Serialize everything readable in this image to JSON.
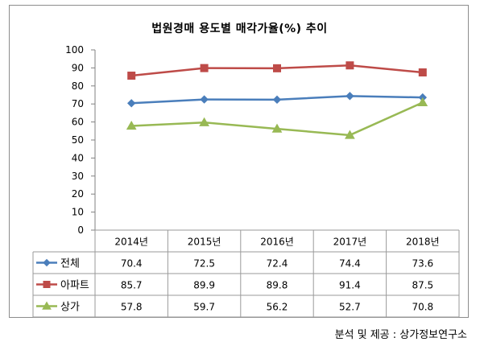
{
  "source_note": "분석 및 제공 : 상가정보연구소",
  "colors": {
    "grid": "#9a9a9a",
    "axis": "#808080"
  },
  "chart_data": {
    "type": "line",
    "title": "법원경매 용도별 매각가율(%) 추이",
    "categories": [
      "2014년",
      "2015년",
      "2016년",
      "2017년",
      "2018년"
    ],
    "ylim": [
      0,
      100
    ],
    "yticks": [
      0,
      10,
      20,
      30,
      40,
      50,
      60,
      70,
      80,
      90,
      100
    ],
    "grid": false,
    "legend": "data-table",
    "series": [
      {
        "name": "전체",
        "values": [
          70.4,
          72.5,
          72.4,
          74.4,
          73.6
        ],
        "labels": [
          "70.4",
          "72.5",
          "72.4",
          "74.4",
          "73.6"
        ],
        "color": "#4a7ebb",
        "marker": "diamond"
      },
      {
        "name": "아파트",
        "values": [
          85.7,
          89.9,
          89.8,
          91.4,
          87.5
        ],
        "labels": [
          "85.7",
          "89.9",
          "89.8",
          "91.4",
          "87.5"
        ],
        "color": "#be4b48",
        "marker": "square"
      },
      {
        "name": "상가",
        "values": [
          57.8,
          59.7,
          56.2,
          52.7,
          70.8
        ],
        "labels": [
          "57.8",
          "59.7",
          "56.2",
          "52.7",
          "70.8"
        ],
        "color": "#98b954",
        "marker": "triangle"
      }
    ]
  }
}
